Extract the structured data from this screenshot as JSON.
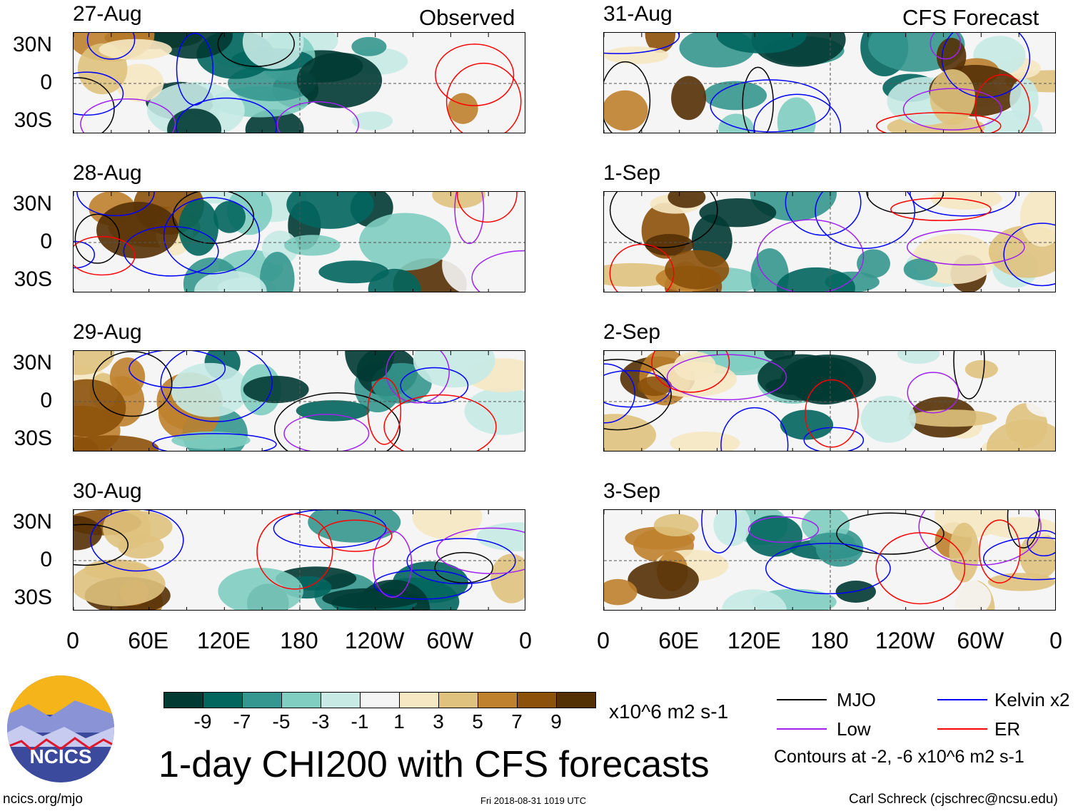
{
  "observed_label": "Observed",
  "forecast_label": "CFS Forecast",
  "observed_dates": [
    "27-Aug",
    "28-Aug",
    "29-Aug",
    "30-Aug"
  ],
  "forecast_dates": [
    "31-Aug",
    "1-Sep",
    "2-Sep",
    "3-Sep"
  ],
  "lat_labels": [
    "30N",
    "0",
    "30S"
  ],
  "lon_labels": [
    "0",
    "60E",
    "120E",
    "180",
    "120W",
    "60W",
    "0"
  ],
  "colorbar": {
    "colors": [
      "#013a33",
      "#02665e",
      "#35978f",
      "#80cdc1",
      "#c7eae5",
      "#f5f5f5",
      "#f6e8c3",
      "#dfc27d",
      "#bf812d",
      "#8c510a",
      "#543005"
    ],
    "ticks": [
      "-9",
      "-7",
      "-5",
      "-3",
      "-1",
      "1",
      "3",
      "5",
      "7",
      "9"
    ],
    "units": "x10^6 m2 s-1"
  },
  "title": "1-day CHI200 with CFS forecasts",
  "legend": {
    "items": [
      {
        "label": "MJO",
        "color": "#000000"
      },
      {
        "label": "Kelvin x2",
        "color": "#0000ff"
      },
      {
        "label": "Low",
        "color": "#a020f0"
      },
      {
        "label": "ER",
        "color": "#ff0000"
      }
    ],
    "note": "Contours at -2, -6 x10^6 m2 s-1"
  },
  "logo_text": "NCICS",
  "footer": {
    "url": "ncics.org/mjo",
    "timestamp": "Fri 2018-08-31 1019 UTC",
    "credit": "Carl Schreck (cjschrec@ncsu.edu)"
  }
}
